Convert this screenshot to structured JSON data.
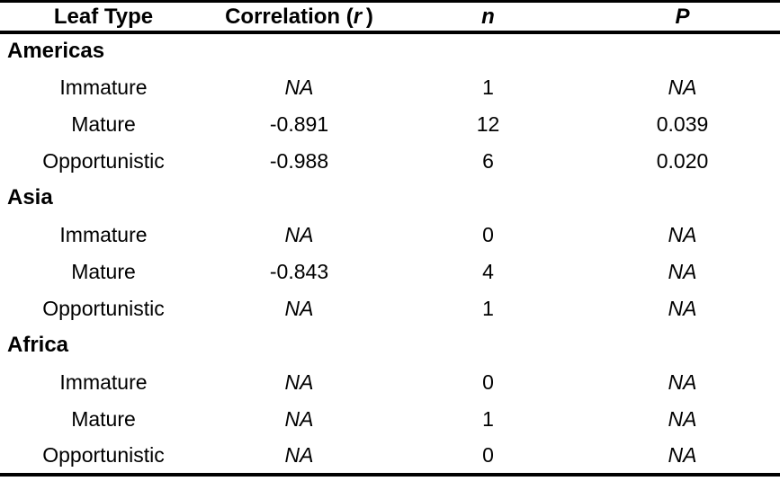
{
  "chart_data": {
    "type": "table",
    "columns": [
      "Leaf Type",
      "Correlation (r)",
      "n",
      "P"
    ],
    "header": {
      "leaf_type": "Leaf Type",
      "correlation_prefix": "Correlation (",
      "correlation_symbol": "r",
      "correlation_suffix": " )",
      "n": "n",
      "p": "P"
    },
    "sections": [
      {
        "name": "Americas",
        "rows": [
          {
            "leaf_type": "Immature",
            "correlation": "NA",
            "n": "1",
            "p": "NA"
          },
          {
            "leaf_type": "Mature",
            "correlation": "-0.891",
            "n": "12",
            "p": "0.039"
          },
          {
            "leaf_type": "Opportunistic",
            "correlation": "-0.988",
            "n": "6",
            "p": "0.020"
          }
        ]
      },
      {
        "name": "Asia",
        "rows": [
          {
            "leaf_type": "Immature",
            "correlation": "NA",
            "n": "0",
            "p": "NA"
          },
          {
            "leaf_type": "Mature",
            "correlation": "-0.843",
            "n": "4",
            "p": "NA"
          },
          {
            "leaf_type": "Opportunistic",
            "correlation": "NA",
            "n": "1",
            "p": "NA"
          }
        ]
      },
      {
        "name": "Africa",
        "rows": [
          {
            "leaf_type": "Immature",
            "correlation": "NA",
            "n": "0",
            "p": "NA"
          },
          {
            "leaf_type": "Mature",
            "correlation": "NA",
            "n": "1",
            "p": "NA"
          },
          {
            "leaf_type": "Opportunistic",
            "correlation": "NA",
            "n": "0",
            "p": "NA"
          }
        ]
      }
    ],
    "na_marker": "NA",
    "colors": {
      "text": "#000000",
      "background": "#ffffff",
      "rule": "#000000"
    }
  }
}
